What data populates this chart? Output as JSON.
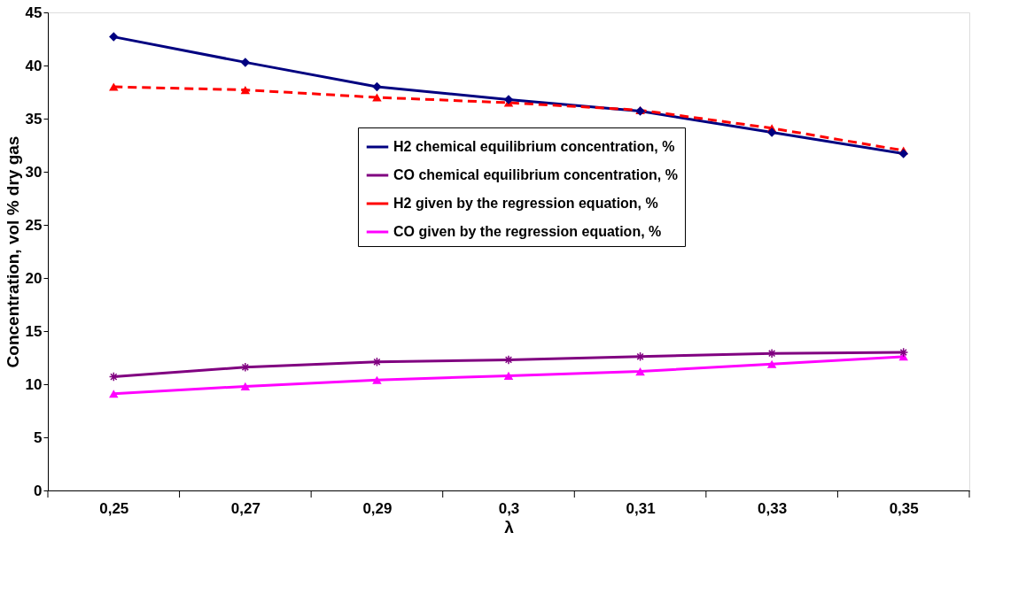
{
  "chart_data": {
    "type": "line",
    "xlabel": "λ",
    "ylabel": "Concentration, vol % dry gas",
    "categories": [
      "0,25",
      "0,27",
      "0,29",
      "0,3",
      "0,31",
      "0,33",
      "0,35"
    ],
    "ylim": [
      0,
      45
    ],
    "yticks": [
      0,
      5,
      10,
      15,
      20,
      25,
      30,
      35,
      40,
      45
    ],
    "grid": false,
    "legend": "center",
    "series": [
      {
        "name": "H2 chemical equilibrium concentration, %",
        "color": "#000080",
        "marker": "diamond",
        "line_style": "solid",
        "values": [
          42.7,
          40.3,
          38.0,
          36.8,
          35.7,
          33.7,
          31.7
        ]
      },
      {
        "name": "CO chemical equilibrium concentration, %",
        "color": "#800080",
        "marker": "cross",
        "line_style": "solid",
        "values": [
          10.7,
          11.6,
          12.1,
          12.3,
          12.6,
          12.9,
          13.0
        ]
      },
      {
        "name": "H2 given by the regression equation, %",
        "color": "#ff0000",
        "marker": "triangle",
        "line_style": "dashed",
        "values": [
          38.0,
          37.7,
          37.0,
          36.5,
          35.8,
          34.1,
          32.0
        ]
      },
      {
        "name": "CO given by the regression equation, %",
        "color": "#ff00ff",
        "marker": "triangle",
        "line_style": "solid",
        "values": [
          9.1,
          9.8,
          10.4,
          10.8,
          11.2,
          11.9,
          12.6
        ]
      }
    ]
  }
}
